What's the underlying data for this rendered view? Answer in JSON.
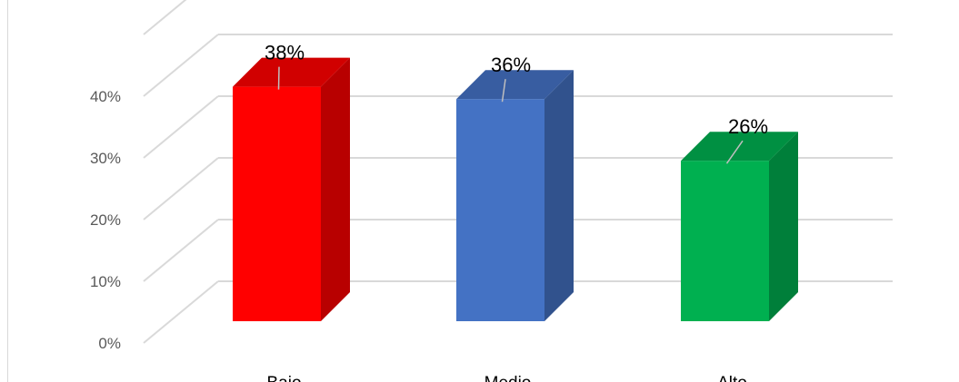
{
  "chart_data": {
    "type": "bar",
    "style": "3d-column",
    "categories": [
      "Bajo",
      "Medio",
      "Alto"
    ],
    "values": [
      38,
      36,
      26
    ],
    "data_labels": [
      "38%",
      "36%",
      "26%"
    ],
    "colors": [
      "#ff0000",
      "#4472c4",
      "#00b050"
    ],
    "y_ticks": [
      "0%",
      "10%",
      "20%",
      "30%",
      "40%"
    ],
    "ylim": [
      0,
      40
    ],
    "grid": true,
    "legend": "none"
  }
}
